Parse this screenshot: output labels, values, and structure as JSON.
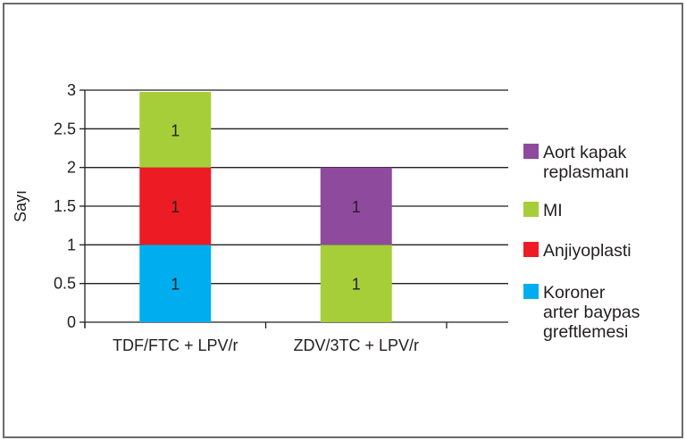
{
  "chart_data": {
    "type": "bar",
    "stacked": true,
    "title": "",
    "xlabel": "",
    "ylabel": "Sayı",
    "ylim": [
      0,
      3
    ],
    "yticks": [
      "0",
      "0.5",
      "1",
      "1.5",
      "2",
      "2.5",
      "3"
    ],
    "grid": true,
    "legend_position": "right",
    "categories": [
      "TDF/FTC + LPV/r",
      "ZDV/3TC + LPV/r"
    ],
    "series": [
      {
        "name": "Koroner arter baypas greftlemesi",
        "legend_lines": [
          "Koroner",
          "arter baypas",
          "greftlemesi"
        ],
        "color": "#00aeef",
        "values": [
          1,
          0
        ],
        "labels": [
          "1",
          ""
        ]
      },
      {
        "name": "Anjiyoplasti",
        "legend_lines": [
          "Anjiyoplasti"
        ],
        "color": "#ed1c24",
        "values": [
          1,
          0
        ],
        "labels": [
          "1",
          ""
        ]
      },
      {
        "name": "MI",
        "legend_lines": [
          "MI"
        ],
        "color": "#a6ce39",
        "values": [
          1,
          1
        ],
        "labels": [
          "1",
          "1"
        ]
      },
      {
        "name": "Aort kapak replasmanı",
        "legend_lines": [
          "Aort kapak",
          "replasmanı"
        ],
        "color": "#8e4a9c",
        "values": [
          0,
          1
        ],
        "labels": [
          "",
          "1"
        ]
      }
    ],
    "stack_order": [
      [
        0,
        1,
        2
      ],
      [
        2,
        3
      ]
    ],
    "legend_order": [
      3,
      2,
      1,
      0
    ]
  }
}
